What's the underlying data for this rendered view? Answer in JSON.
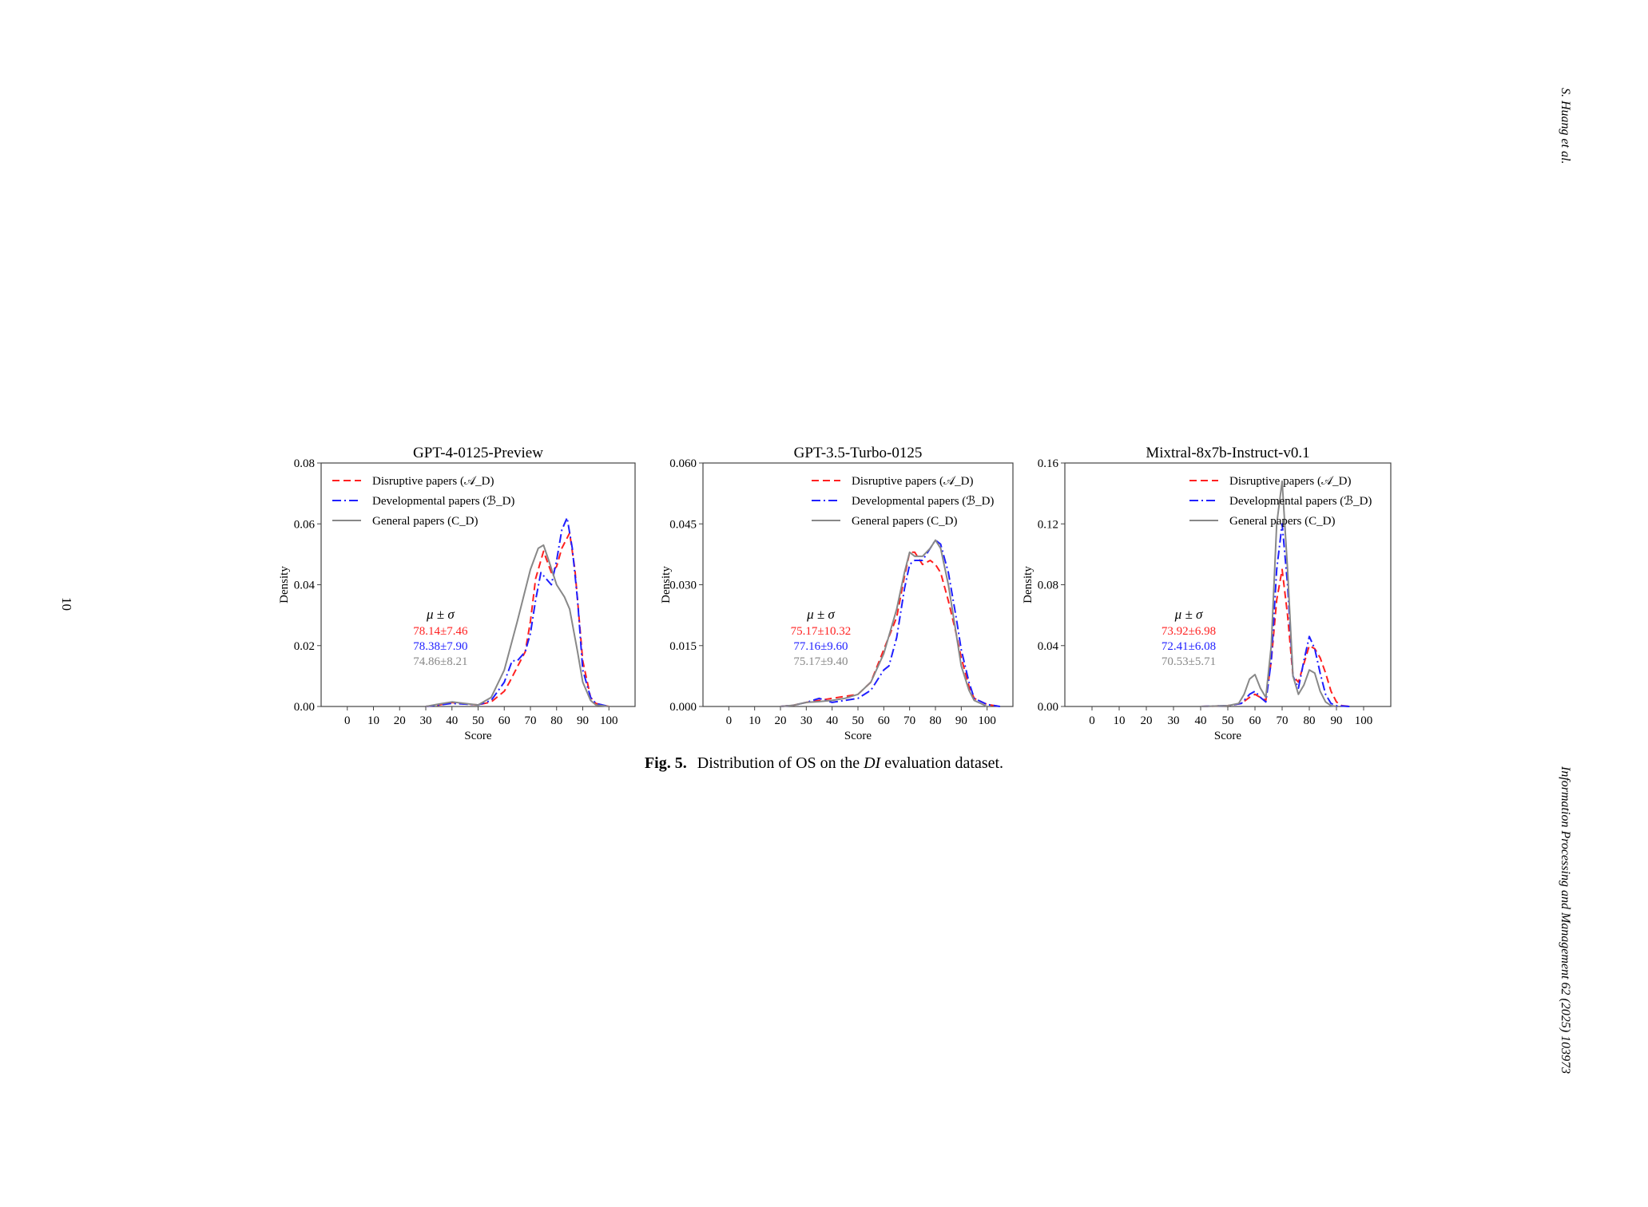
{
  "page": {
    "running_head": "S. Huang et al.",
    "journal": "Information Processing and Management 62 (2025) 103973",
    "page_number": "10"
  },
  "caption": {
    "label": "Fig. 5.",
    "text_before": "Distribution of OS on the",
    "italic": "DI",
    "text_after": "evaluation dataset."
  },
  "stats_header": "μ ± σ",
  "colors": {
    "disruptive": "#ff2020",
    "developmental": "#1f1fff",
    "general": "#888888"
  },
  "chart_data": [
    {
      "type": "line",
      "title": "GPT-4-0125-Preview",
      "xlabel": "Score",
      "ylabel": "Density",
      "xlim": [
        -10,
        110
      ],
      "ylim": [
        0,
        0.08
      ],
      "xticks": [
        "0",
        "10",
        "20",
        "30",
        "40",
        "50",
        "60",
        "70",
        "80",
        "90",
        "100"
      ],
      "yticks": [
        "0.00",
        "0.02",
        "0.04",
        "0.06",
        "0.08"
      ],
      "legend_position": "top-left",
      "series": [
        {
          "name": "Disruptive papers (𝒜_D)",
          "style": "dashed",
          "color": "#ff2020",
          "x": [
            30,
            35,
            40,
            45,
            50,
            55,
            60,
            62,
            65,
            68,
            70,
            72,
            75,
            78,
            80,
            82,
            85,
            87,
            90,
            93,
            95,
            100
          ],
          "y": [
            0.0,
            0.0005,
            0.0013,
            0.0008,
            0.0005,
            0.0015,
            0.005,
            0.008,
            0.013,
            0.018,
            0.028,
            0.042,
            0.051,
            0.044,
            0.046,
            0.052,
            0.057,
            0.045,
            0.015,
            0.003,
            0.001,
            0.0
          ]
        },
        {
          "name": "Developmental papers (ℬ_D)",
          "style": "dashdot",
          "color": "#1f1fff",
          "x": [
            30,
            35,
            40,
            45,
            50,
            55,
            60,
            63,
            65,
            68,
            70,
            72,
            74,
            76,
            78,
            80,
            82,
            84,
            86,
            88,
            90,
            93,
            95,
            100
          ],
          "y": [
            0.0,
            0.0005,
            0.001,
            0.0008,
            0.0005,
            0.002,
            0.008,
            0.015,
            0.015,
            0.018,
            0.024,
            0.035,
            0.044,
            0.042,
            0.04,
            0.048,
            0.058,
            0.062,
            0.052,
            0.035,
            0.012,
            0.003,
            0.001,
            0.0
          ]
        },
        {
          "name": "General papers (C_D)",
          "style": "solid",
          "color": "#888888",
          "x": [
            30,
            35,
            40,
            45,
            50,
            55,
            60,
            65,
            70,
            73,
            75,
            77,
            80,
            83,
            85,
            88,
            90,
            93,
            95,
            100
          ],
          "y": [
            0.0,
            0.0008,
            0.0015,
            0.001,
            0.0005,
            0.003,
            0.012,
            0.028,
            0.045,
            0.052,
            0.053,
            0.048,
            0.04,
            0.036,
            0.032,
            0.018,
            0.008,
            0.002,
            0.0005,
            0.0
          ]
        }
      ],
      "annotations": [
        {
          "text": "78.14±7.46",
          "color": "#ff2020"
        },
        {
          "text": "78.38±7.90",
          "color": "#1f1fff"
        },
        {
          "text": "74.86±8.21",
          "color": "#888888"
        }
      ]
    },
    {
      "type": "line",
      "title": "GPT-3.5-Turbo-0125",
      "xlabel": "Score",
      "ylabel": "Density",
      "xlim": [
        -10,
        110
      ],
      "ylim": [
        0,
        0.06
      ],
      "xticks": [
        "0",
        "10",
        "20",
        "30",
        "40",
        "50",
        "60",
        "70",
        "80",
        "90",
        "100"
      ],
      "yticks": [
        "0.000",
        "0.015",
        "0.030",
        "0.045",
        "0.060"
      ],
      "legend_position": "top-right",
      "series": [
        {
          "name": "Disruptive papers (𝒜_D)",
          "style": "dashed",
          "color": "#ff2020",
          "x": [
            20,
            25,
            30,
            35,
            40,
            45,
            50,
            55,
            60,
            65,
            68,
            70,
            72,
            75,
            78,
            80,
            82,
            85,
            88,
            90,
            93,
            95,
            100,
            105
          ],
          "y": [
            0.0,
            0.0003,
            0.001,
            0.0015,
            0.002,
            0.0025,
            0.003,
            0.006,
            0.014,
            0.022,
            0.032,
            0.038,
            0.038,
            0.035,
            0.036,
            0.035,
            0.033,
            0.026,
            0.018,
            0.012,
            0.005,
            0.002,
            0.0005,
            0.0
          ]
        },
        {
          "name": "Developmental papers (ℬ_D)",
          "style": "dashdot",
          "color": "#1f1fff",
          "x": [
            20,
            25,
            30,
            35,
            40,
            45,
            50,
            55,
            58,
            60,
            62,
            65,
            68,
            70,
            72,
            75,
            78,
            80,
            82,
            85,
            88,
            90,
            93,
            95,
            100,
            105
          ],
          "y": [
            0.0,
            0.0003,
            0.001,
            0.002,
            0.001,
            0.0015,
            0.002,
            0.004,
            0.007,
            0.009,
            0.01,
            0.017,
            0.029,
            0.035,
            0.036,
            0.036,
            0.039,
            0.041,
            0.04,
            0.033,
            0.022,
            0.014,
            0.006,
            0.002,
            0.0005,
            0.0
          ]
        },
        {
          "name": "General papers (C_D)",
          "style": "solid",
          "color": "#888888",
          "x": [
            20,
            25,
            30,
            35,
            40,
            45,
            50,
            55,
            60,
            65,
            68,
            70,
            72,
            75,
            78,
            80,
            82,
            85,
            88,
            90,
            93,
            95,
            100
          ],
          "y": [
            0.0,
            0.0003,
            0.001,
            0.0012,
            0.0015,
            0.002,
            0.003,
            0.006,
            0.013,
            0.024,
            0.033,
            0.038,
            0.037,
            0.037,
            0.039,
            0.041,
            0.039,
            0.03,
            0.018,
            0.01,
            0.004,
            0.0015,
            0.0
          ]
        }
      ],
      "annotations": [
        {
          "text": "75.17±10.32",
          "color": "#ff2020"
        },
        {
          "text": "77.16±9.60",
          "color": "#1f1fff"
        },
        {
          "text": "75.17±9.40",
          "color": "#888888"
        }
      ]
    },
    {
      "type": "line",
      "title": "Mixtral-8x7b-Instruct-v0.1",
      "xlabel": "Score",
      "ylabel": "Density",
      "xlim": [
        -10,
        110
      ],
      "ylim": [
        0,
        0.16
      ],
      "xticks": [
        "0",
        "10",
        "20",
        "30",
        "40",
        "50",
        "60",
        "70",
        "80",
        "90",
        "100"
      ],
      "yticks": [
        "0.00",
        "0.04",
        "0.08",
        "0.12",
        "0.16"
      ],
      "legend_position": "top-right",
      "series": [
        {
          "name": "Disruptive papers (𝒜_D)",
          "style": "dashed",
          "color": "#ff2020",
          "x": [
            40,
            50,
            55,
            58,
            60,
            62,
            64,
            66,
            68,
            70,
            72,
            74,
            76,
            78,
            80,
            82,
            84,
            86,
            88,
            90,
            92,
            95
          ],
          "y": [
            0.0,
            0.0005,
            0.002,
            0.006,
            0.008,
            0.006,
            0.004,
            0.03,
            0.07,
            0.09,
            0.06,
            0.02,
            0.016,
            0.028,
            0.04,
            0.038,
            0.032,
            0.022,
            0.01,
            0.003,
            0.0005,
            0.0
          ]
        },
        {
          "name": "Developmental papers (ℬ_D)",
          "style": "dashdot",
          "color": "#1f1fff",
          "x": [
            40,
            50,
            55,
            58,
            60,
            62,
            64,
            66,
            68,
            70,
            72,
            74,
            76,
            78,
            80,
            82,
            84,
            86,
            88,
            90,
            95
          ],
          "y": [
            0.0,
            0.0005,
            0.002,
            0.008,
            0.01,
            0.006,
            0.003,
            0.03,
            0.09,
            0.12,
            0.08,
            0.02,
            0.012,
            0.03,
            0.046,
            0.038,
            0.022,
            0.008,
            0.002,
            0.0005,
            0.0
          ]
        },
        {
          "name": "General papers (C_D)",
          "style": "solid",
          "color": "#888888",
          "x": [
            40,
            50,
            54,
            56,
            58,
            60,
            62,
            64,
            66,
            68,
            70,
            72,
            74,
            76,
            78,
            80,
            82,
            84,
            86,
            88,
            90
          ],
          "y": [
            0.0,
            0.0005,
            0.002,
            0.008,
            0.018,
            0.021,
            0.012,
            0.006,
            0.04,
            0.12,
            0.148,
            0.09,
            0.02,
            0.008,
            0.014,
            0.024,
            0.022,
            0.01,
            0.003,
            0.0005,
            0.0
          ]
        }
      ],
      "annotations": [
        {
          "text": "73.92±6.98",
          "color": "#ff2020"
        },
        {
          "text": "72.41±6.08",
          "color": "#1f1fff"
        },
        {
          "text": "70.53±5.71",
          "color": "#888888"
        }
      ]
    }
  ]
}
